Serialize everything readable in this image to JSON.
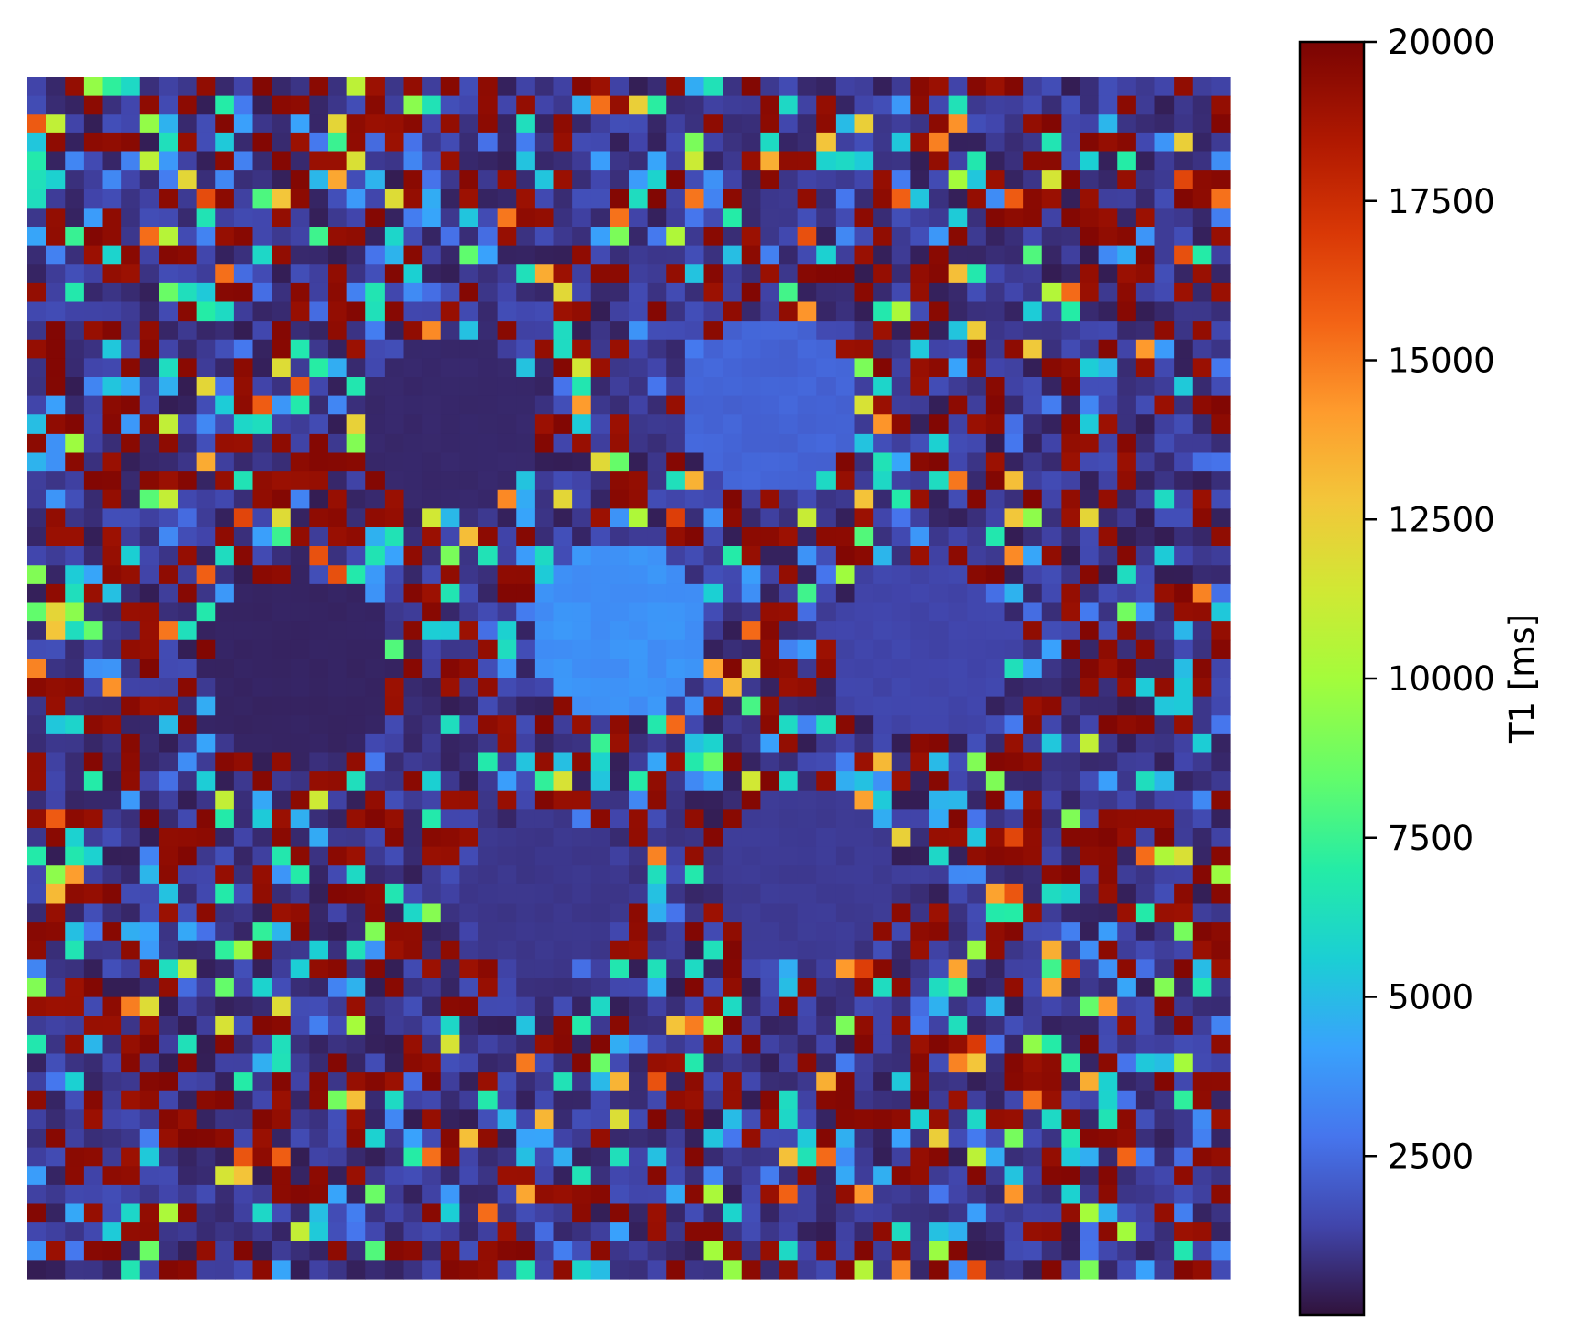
{
  "chart_data": {
    "type": "heatmap",
    "title": "",
    "grid": false,
    "axes_visible": false,
    "matrix_size": [
      64,
      64
    ],
    "colormap": "turbo",
    "colorbar": {
      "label": "T1 [ms]",
      "position": "right",
      "vmin": 0,
      "vmax": 20000,
      "ticks": [
        2500,
        5000,
        7500,
        10000,
        12500,
        15000,
        17500,
        20000
      ],
      "tick_labels": [
        "2500",
        "5000",
        "7500",
        "10000",
        "12500",
        "15000",
        "17500",
        "20000"
      ]
    },
    "background_noise": {
      "low_value": 300,
      "high_value": 19800,
      "description_values": "outside the phantom vials, pixel values alternate between near 0 ms and about 19800 ms with scattered mid-range (2500-15000 ms) outliers"
    },
    "regions": [
      {
        "name": "vial-1",
        "center_col": 22,
        "center_row": 18,
        "radius": 4.6,
        "value": 600
      },
      {
        "name": "vial-2",
        "center_col": 39,
        "center_row": 17,
        "radius": 4.6,
        "value": 2300
      },
      {
        "name": "vial-3",
        "center_col": 14,
        "center_row": 31,
        "radius": 5.0,
        "value": 500
      },
      {
        "name": "vial-4",
        "center_col": 31,
        "center_row": 29,
        "radius": 4.8,
        "value": 3700
      },
      {
        "name": "vial-5",
        "center_col": 47,
        "center_row": 30,
        "radius": 4.8,
        "value": 1400
      },
      {
        "name": "vial-6",
        "center_col": 27,
        "center_row": 43,
        "radius": 4.4,
        "value": 1000
      },
      {
        "name": "vial-7",
        "center_col": 41,
        "center_row": 42,
        "radius": 4.8,
        "value": 1100
      }
    ]
  }
}
